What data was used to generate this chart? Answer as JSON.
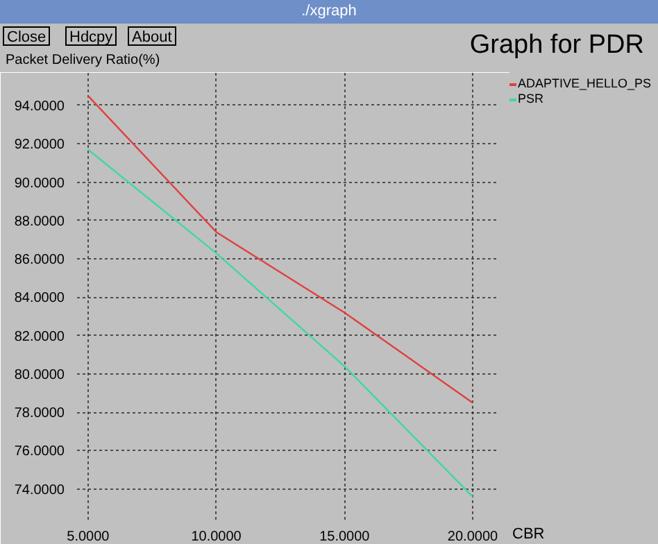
{
  "chart_data": {
    "type": "line",
    "title": "Graph for PDR",
    "ylabel": "Packet Delivery Ratio(%)",
    "xlabel": "CBR",
    "annotations": [
      "./xgraph",
      "Close",
      "Hdcpy",
      "About"
    ],
    "x": [
      5,
      10,
      15,
      20
    ],
    "series": [
      {
        "name": "ADAPTIVE_HELLO_PS",
        "color": "#e04040",
        "values": [
          94.5,
          87.4,
          83.2,
          78.5
        ]
      },
      {
        "name": "PSR",
        "color": "#40d8a0",
        "values": [
          91.7,
          86.3,
          80.4,
          73.6
        ]
      }
    ],
    "xlim": [
      4.57,
      20.92
    ],
    "ylim": [
      72.4,
      95.7
    ],
    "xticks": [
      {
        "value": 5,
        "label": "5.0000"
      },
      {
        "value": 10,
        "label": "10.0000"
      },
      {
        "value": 15,
        "label": "15.0000"
      },
      {
        "value": 20,
        "label": "20.0000"
      }
    ],
    "yticks": [
      {
        "value": 74,
        "label": "74.0000"
      },
      {
        "value": 76,
        "label": "76.0000"
      },
      {
        "value": 78,
        "label": "78.0000"
      },
      {
        "value": 80,
        "label": "80.0000"
      },
      {
        "value": 82,
        "label": "82.0000"
      },
      {
        "value": 84,
        "label": "84.0000"
      },
      {
        "value": 86,
        "label": "86.0000"
      },
      {
        "value": 88,
        "label": "88.0000"
      },
      {
        "value": 90,
        "label": "90.0000"
      },
      {
        "value": 92,
        "label": "92.0000"
      },
      {
        "value": 94,
        "label": "94.0000"
      }
    ],
    "grid": true,
    "legend": "top right",
    "marker": "none",
    "line_style": "solid"
  }
}
